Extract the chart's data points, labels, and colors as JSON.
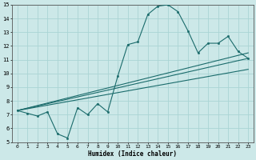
{
  "xlabel": "Humidex (Indice chaleur)",
  "ylabel": "",
  "xlim": [
    -0.5,
    23.5
  ],
  "ylim": [
    5,
    15
  ],
  "xticks": [
    0,
    1,
    2,
    3,
    4,
    5,
    6,
    7,
    8,
    9,
    10,
    11,
    12,
    13,
    14,
    15,
    16,
    17,
    18,
    19,
    20,
    21,
    22,
    23
  ],
  "yticks": [
    5,
    6,
    7,
    8,
    9,
    10,
    11,
    12,
    13,
    14,
    15
  ],
  "background_color": "#cce8e8",
  "grid_color": "#aad4d4",
  "line_color": "#1a6b6b",
  "line1_x": [
    0,
    1,
    2,
    3,
    4,
    5,
    6,
    7,
    8,
    9,
    10,
    11,
    12,
    13,
    14,
    15,
    16,
    17,
    18,
    19,
    20,
    21,
    22,
    23
  ],
  "line1_y": [
    7.3,
    7.1,
    6.9,
    7.2,
    5.6,
    5.3,
    7.5,
    7.0,
    7.8,
    7.2,
    9.8,
    12.1,
    12.3,
    14.3,
    14.9,
    15.0,
    14.5,
    13.1,
    11.5,
    12.2,
    12.2,
    12.7,
    11.6,
    11.1
  ],
  "line2_x": [
    0,
    23
  ],
  "line2_y": [
    7.3,
    11.1
  ],
  "line3_x": [
    0,
    23
  ],
  "line3_y": [
    7.3,
    10.3
  ],
  "line4_x": [
    0,
    23
  ],
  "line4_y": [
    7.3,
    11.5
  ]
}
